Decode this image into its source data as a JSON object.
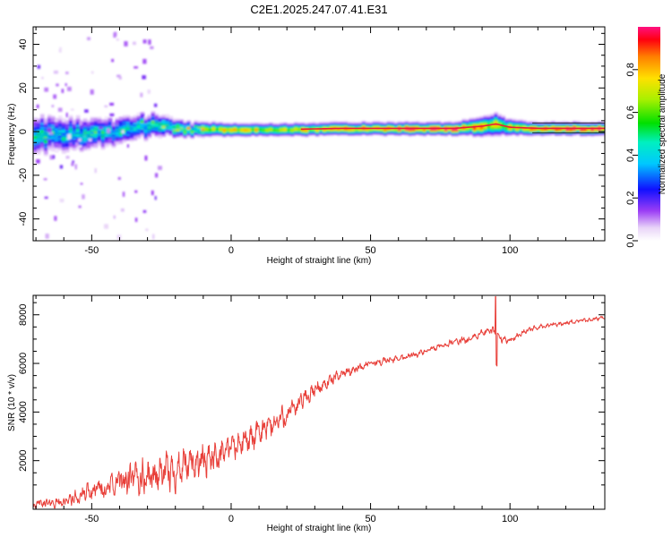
{
  "title": "C2E1.2025.247.07.41.E31",
  "colors": {
    "snr_line": "#e8403a",
    "spectrum_ridge": "#e8203a"
  },
  "chart_data": [
    {
      "type": "heatmap",
      "xlabel": "Height of straight line (km)",
      "ylabel": "Frequency (Hz)",
      "xlim": [
        -71,
        134
      ],
      "ylim": [
        -50,
        48
      ],
      "x_ticks": [
        -50,
        0,
        50,
        100
      ],
      "x_tick_labels": [
        "-50",
        "0",
        "50",
        "100"
      ],
      "y_ticks": [
        -40,
        -20,
        0,
        20,
        40
      ],
      "y_tick_labels": [
        "-40",
        "-20",
        "0",
        "20",
        "40"
      ],
      "colorbar": {
        "label": "Normalized spectral amplitude",
        "range": [
          0,
          1
        ],
        "ticks": [
          0,
          0.2,
          0.4,
          0.6,
          0.8
        ],
        "tick_labels": [
          "0.0",
          "0.2",
          "0.4",
          "0.6",
          "0.8"
        ]
      },
      "ridge_profile": [
        {
          "x": -71,
          "freq": -1.5,
          "amp": 0.45,
          "spread": 6.0
        },
        {
          "x": -60,
          "freq": -1.0,
          "amp": 0.45,
          "spread": 5.5
        },
        {
          "x": -50,
          "freq": -0.5,
          "amp": 0.45,
          "spread": 5.0
        },
        {
          "x": -40,
          "freq": 0.0,
          "amp": 0.45,
          "spread": 4.5
        },
        {
          "x": -32,
          "freq": 2.5,
          "amp": 0.55,
          "spread": 4.0
        },
        {
          "x": -25,
          "freq": 3.0,
          "amp": 0.55,
          "spread": 3.5
        },
        {
          "x": -15,
          "freq": 1.5,
          "amp": 0.65,
          "spread": 2.5
        },
        {
          "x": 0,
          "freq": 1.0,
          "amp": 0.75,
          "spread": 2.0
        },
        {
          "x": 20,
          "freq": 1.0,
          "amp": 0.75,
          "spread": 2.0
        },
        {
          "x": 40,
          "freq": 1.5,
          "amp": 0.8,
          "spread": 2.0
        },
        {
          "x": 60,
          "freq": 1.5,
          "amp": 0.95,
          "spread": 2.0
        },
        {
          "x": 80,
          "freq": 1.5,
          "amp": 0.95,
          "spread": 2.0
        },
        {
          "x": 90,
          "freq": 2.5,
          "amp": 0.85,
          "spread": 3.0
        },
        {
          "x": 95,
          "freq": 3.5,
          "amp": 0.75,
          "spread": 3.5
        },
        {
          "x": 100,
          "freq": 2.0,
          "amp": 0.8,
          "spread": 2.5
        },
        {
          "x": 110,
          "freq": 1.5,
          "amp": 0.95,
          "spread": 2.0
        },
        {
          "x": 134,
          "freq": 1.5,
          "amp": 0.95,
          "spread": 2.0
        }
      ]
    },
    {
      "type": "line",
      "xlabel": "Height of straight line (km)",
      "ylabel": "SNR (10 * v/v)",
      "xlim": [
        -71,
        134
      ],
      "ylim": [
        0,
        8800
      ],
      "x_ticks": [
        -50,
        0,
        50,
        100
      ],
      "x_tick_labels": [
        "-50",
        "0",
        "50",
        "100"
      ],
      "y_ticks": [
        2000,
        4000,
        6000,
        8000
      ],
      "y_tick_labels": [
        "2000",
        "4000",
        "6000",
        "8000"
      ],
      "series": [
        {
          "name": "SNR",
          "trend_x": [
            -71,
            -60,
            -50,
            -40,
            -30,
            -20,
            -10,
            0,
            10,
            20,
            30,
            40,
            50,
            60,
            70,
            80,
            85,
            90,
            95,
            97,
            100,
            105,
            110,
            120,
            134
          ],
          "trend_y": [
            200,
            300,
            700,
            1100,
            1350,
            1600,
            2000,
            2500,
            3100,
            3900,
            4900,
            5600,
            6000,
            6200,
            6500,
            6900,
            6950,
            7250,
            7350,
            7000,
            6950,
            7300,
            7500,
            7650,
            7900
          ],
          "noise_amplitude": [
            300,
            350,
            700,
            1000,
            1200,
            1200,
            1150,
            1000,
            900,
            800,
            500,
            300,
            250,
            220,
            200,
            200,
            250,
            250,
            300,
            250,
            200,
            180,
            160,
            150,
            150
          ]
        }
      ]
    }
  ]
}
